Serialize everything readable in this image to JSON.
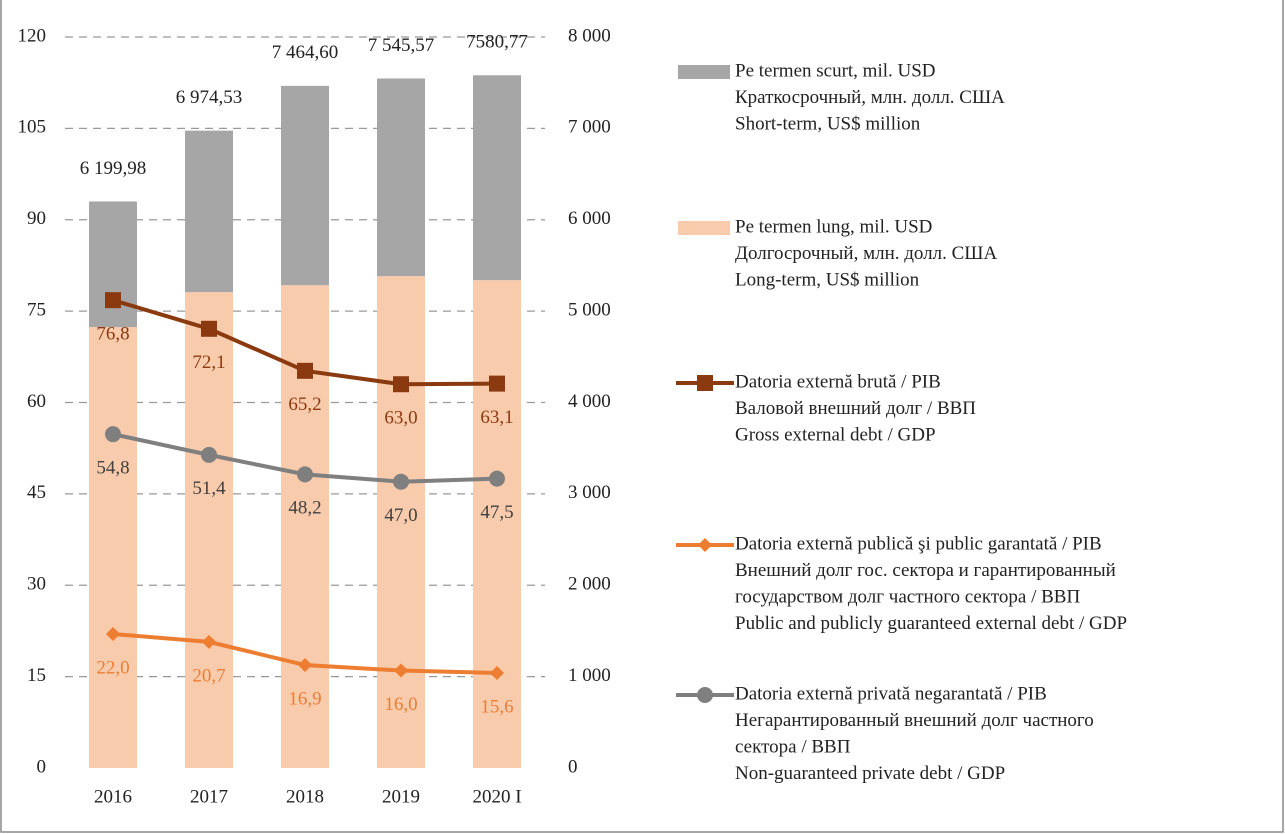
{
  "chart_data": {
    "type": "bar_line",
    "categories": [
      "2016",
      "2017",
      "2018",
      "2019",
      "2020 I"
    ],
    "ylim": [
      0,
      120
    ],
    "yticks": [
      0,
      15,
      30,
      45,
      60,
      75,
      90,
      105,
      120
    ],
    "y2lim": [
      0,
      8000
    ],
    "y2ticks": [
      0,
      {
        "value": 1000,
        "label": "1 000"
      },
      {
        "value": 2000,
        "label": "2 000"
      },
      {
        "value": 3000,
        "label": "3 000"
      },
      {
        "value": 4000,
        "label": "4 000"
      },
      {
        "value": 5000,
        "label": "5 000"
      },
      {
        "value": 6000,
        "label": "6 000"
      },
      {
        "value": 7000,
        "label": "7 000"
      },
      {
        "value": 8000,
        "label": "8 000"
      }
    ],
    "grid": true,
    "totals": [
      {
        "value": 6199.98,
        "label": "6 199,98"
      },
      {
        "value": 6974.53,
        "label": "6 974,53"
      },
      {
        "value": 7464.6,
        "label": "7 464,60"
      },
      {
        "value": 7545.57,
        "label": "7 545,57"
      },
      {
        "value": 7580.77,
        "label": "7580,77"
      }
    ],
    "series": [
      {
        "name": [
          "Pe termen scurt, mil. USD",
          "Краткосрочный, млн. долл. США",
          "Short-term, US$ million"
        ],
        "kind": "bar",
        "axis": "y2",
        "color": "#a6a6a6",
        "values": [
          1375,
          1767,
          2181,
          2163,
          2242
        ]
      },
      {
        "name": [
          "Pe termen lung, mil. USD",
          "Долгосрочный, млн. долл. США",
          "Long-term, US$ million"
        ],
        "kind": "bar",
        "axis": "y2",
        "color": "#f8cbad",
        "values": [
          4825,
          5208,
          5284,
          5383,
          5339
        ]
      },
      {
        "name": [
          "Datoria externă brută / PIB",
          "Валовой внешний долг / ВВП",
          "Gross external debt / GDP"
        ],
        "kind": "line",
        "marker": "square",
        "color": "#8b3a0f",
        "values": [
          76.8,
          72.1,
          65.2,
          63.0,
          63.1
        ],
        "value_labels": [
          "76,8",
          "72,1",
          "65,2",
          "63,0",
          "63,1"
        ]
      },
      {
        "name": [
          "Datoria externă publică şi public garantată / PIB",
          "Внешний долг гос. сектора и гарантированный",
          "государством долг частного сектора  / ВВП",
          "Public and publicly guaranteed external debt / GDP"
        ],
        "kind": "line",
        "marker": "diamond",
        "color": "#ed7d31",
        "values": [
          22.0,
          20.7,
          16.9,
          16.0,
          15.6
        ],
        "value_labels": [
          "22,0",
          "20,7",
          "16,9",
          "16,0",
          "15,6"
        ]
      },
      {
        "name": [
          "Datoria externă privată negarantată / PIB",
          "Негарантированный внешний долг частного",
          "сектора / ВВП",
          "Non-guaranteed private debt / GDP"
        ],
        "kind": "line",
        "marker": "circle",
        "color": "#7f7f7f",
        "values": [
          54.8,
          51.4,
          48.2,
          47.0,
          47.5
        ],
        "value_labels": [
          "54,8",
          "51,4",
          "48,2",
          "47,0",
          "47,5"
        ]
      }
    ]
  }
}
